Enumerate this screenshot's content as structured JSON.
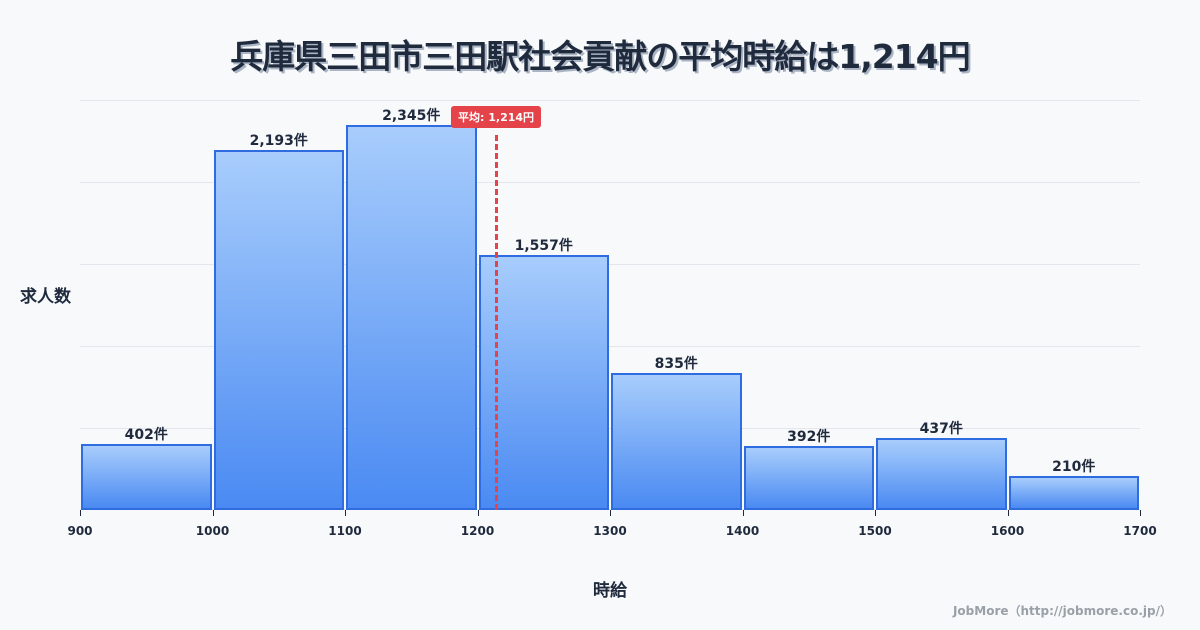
{
  "title": "兵庫県三田市三田駅社会貢献の平均時給は1,214円",
  "average_badge": "平均: 1,214円",
  "y_axis_label": "求人数",
  "x_axis_label": "時給",
  "credit": "JobMore（http://jobmore.co.jp/）",
  "colors": {
    "bar_border": "#2f6ce0",
    "bar_top": "#a8cdfc",
    "bar_bottom": "#4a8af2",
    "average_line": "#e5434a",
    "title": "#1f2a3d",
    "background": "#f8f9fb"
  },
  "bars": [
    {
      "range": "900-1000",
      "label": "402件"
    },
    {
      "range": "1000-1100",
      "label": "2,193件"
    },
    {
      "range": "1100-1200",
      "label": "2,345件"
    },
    {
      "range": "1200-1300",
      "label": "1,557件"
    },
    {
      "range": "1300-1400",
      "label": "835件"
    },
    {
      "range": "1400-1500",
      "label": "392件"
    },
    {
      "range": "1500-1600",
      "label": "437件"
    },
    {
      "range": "1600-1700",
      "label": "210件"
    }
  ],
  "x_ticks": [
    "900",
    "1000",
    "1100",
    "1200",
    "1300",
    "1400",
    "1500",
    "1600",
    "1700"
  ],
  "chart_data": {
    "type": "bar",
    "title": "兵庫県三田市三田駅社会貢献の平均時給は1,214円",
    "xlabel": "時給",
    "ylabel": "求人数",
    "categories": [
      "900-1000",
      "1000-1100",
      "1100-1200",
      "1200-1300",
      "1300-1400",
      "1400-1500",
      "1500-1600",
      "1600-1700"
    ],
    "values": [
      402,
      2193,
      2345,
      1557,
      835,
      392,
      437,
      210
    ],
    "data_labels": [
      "402件",
      "2,193件",
      "2,345件",
      "1,557件",
      "835件",
      "392件",
      "437件",
      "210件"
    ],
    "x_ticks": [
      900,
      1000,
      1100,
      1200,
      1300,
      1400,
      1500,
      1600,
      1700
    ],
    "xlim": [
      900,
      1700
    ],
    "ylim": [
      0,
      2500
    ],
    "grid": true,
    "gridlines_y": [
      500,
      1000,
      1500,
      2000,
      2500
    ],
    "annotations": [
      {
        "type": "vline",
        "x": 1214,
        "label": "平均: 1,214円",
        "style": "dashed",
        "color": "#e5434a"
      }
    ],
    "legend": null
  }
}
